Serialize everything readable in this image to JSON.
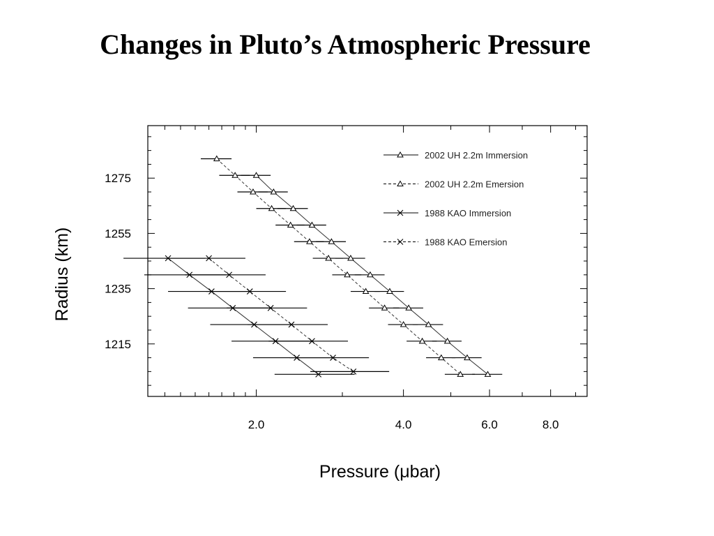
{
  "title": "Changes in Pluto’s Atmospheric Pressure",
  "chart_data": {
    "type": "scatter",
    "xscale": "log",
    "xlim": [
      1.2,
      9.5
    ],
    "ylim": [
      1196,
      1294
    ],
    "xlabel": "Pressure (μbar)",
    "ylabel": "Radius (km)",
    "x_ticks": [
      {
        "value": 2.0,
        "label": "2.0"
      },
      {
        "value": 4.0,
        "label": "4.0"
      },
      {
        "value": 6.0,
        "label": "6.0"
      },
      {
        "value": 8.0,
        "label": "8.0"
      }
    ],
    "y_ticks": [
      {
        "value": 1275,
        "label": "1275"
      },
      {
        "value": 1255,
        "label": "1255"
      },
      {
        "value": 1235,
        "label": "1235"
      },
      {
        "value": 1215,
        "label": "1215"
      }
    ],
    "legend_position": "top-right",
    "series": [
      {
        "name": "2002 UH 2.2m Immersion",
        "marker": "triangle",
        "line": "solid",
        "points": [
          {
            "x": 2.0,
            "y": 1276,
            "xerr": 0.14
          },
          {
            "x": 2.17,
            "y": 1270,
            "xerr": 0.15
          },
          {
            "x": 2.38,
            "y": 1264,
            "xerr": 0.17
          },
          {
            "x": 2.6,
            "y": 1258,
            "xerr": 0.18
          },
          {
            "x": 2.85,
            "y": 1252,
            "xerr": 0.2
          },
          {
            "x": 3.12,
            "y": 1246,
            "xerr": 0.22
          },
          {
            "x": 3.42,
            "y": 1240,
            "xerr": 0.24
          },
          {
            "x": 3.75,
            "y": 1234,
            "xerr": 0.26
          },
          {
            "x": 4.1,
            "y": 1228,
            "xerr": 0.29
          },
          {
            "x": 4.5,
            "y": 1222,
            "xerr": 0.32
          },
          {
            "x": 4.92,
            "y": 1216,
            "xerr": 0.34
          },
          {
            "x": 5.4,
            "y": 1210,
            "xerr": 0.38
          },
          {
            "x": 5.95,
            "y": 1204,
            "xerr": 0.42
          }
        ]
      },
      {
        "name": "2002 UH 2.2m Emersion",
        "marker": "triangle",
        "line": "dashed",
        "points": [
          {
            "x": 1.66,
            "y": 1282,
            "xerr": 0.12
          },
          {
            "x": 1.81,
            "y": 1276,
            "xerr": 0.13
          },
          {
            "x": 1.97,
            "y": 1270,
            "xerr": 0.14
          },
          {
            "x": 2.15,
            "y": 1264,
            "xerr": 0.15
          },
          {
            "x": 2.35,
            "y": 1258,
            "xerr": 0.16
          },
          {
            "x": 2.57,
            "y": 1252,
            "xerr": 0.18
          },
          {
            "x": 2.81,
            "y": 1246,
            "xerr": 0.2
          },
          {
            "x": 3.07,
            "y": 1240,
            "xerr": 0.21
          },
          {
            "x": 3.35,
            "y": 1234,
            "xerr": 0.23
          },
          {
            "x": 3.66,
            "y": 1228,
            "xerr": 0.26
          },
          {
            "x": 4.0,
            "y": 1222,
            "xerr": 0.28
          },
          {
            "x": 4.37,
            "y": 1216,
            "xerr": 0.31
          },
          {
            "x": 4.78,
            "y": 1210,
            "xerr": 0.33
          },
          {
            "x": 5.23,
            "y": 1204,
            "xerr": 0.37
          }
        ]
      },
      {
        "name": "1988 KAO Immersion",
        "marker": "x",
        "line": "solid",
        "points": [
          {
            "x": 1.32,
            "y": 1246,
            "xerr": 0.25
          },
          {
            "x": 1.46,
            "y": 1240,
            "xerr": 0.28
          },
          {
            "x": 1.62,
            "y": 1234,
            "xerr": 0.3
          },
          {
            "x": 1.79,
            "y": 1228,
            "xerr": 0.34
          },
          {
            "x": 1.98,
            "y": 1222,
            "xerr": 0.37
          },
          {
            "x": 2.19,
            "y": 1216,
            "xerr": 0.41
          },
          {
            "x": 2.42,
            "y": 1210,
            "xerr": 0.45
          },
          {
            "x": 2.68,
            "y": 1204,
            "xerr": 0.5
          }
        ]
      },
      {
        "name": "1988 KAO Emersion",
        "marker": "x",
        "line": "dashed",
        "points": [
          {
            "x": 1.6,
            "y": 1246,
            "xerr": 0.3
          },
          {
            "x": 1.76,
            "y": 1240,
            "xerr": 0.33
          },
          {
            "x": 1.94,
            "y": 1234,
            "xerr": 0.36
          },
          {
            "x": 2.14,
            "y": 1228,
            "xerr": 0.4
          },
          {
            "x": 2.36,
            "y": 1222,
            "xerr": 0.44
          },
          {
            "x": 2.6,
            "y": 1216,
            "xerr": 0.48
          },
          {
            "x": 2.87,
            "y": 1210,
            "xerr": 0.53
          },
          {
            "x": 3.16,
            "y": 1205,
            "xerr": 0.58
          }
        ]
      }
    ]
  }
}
